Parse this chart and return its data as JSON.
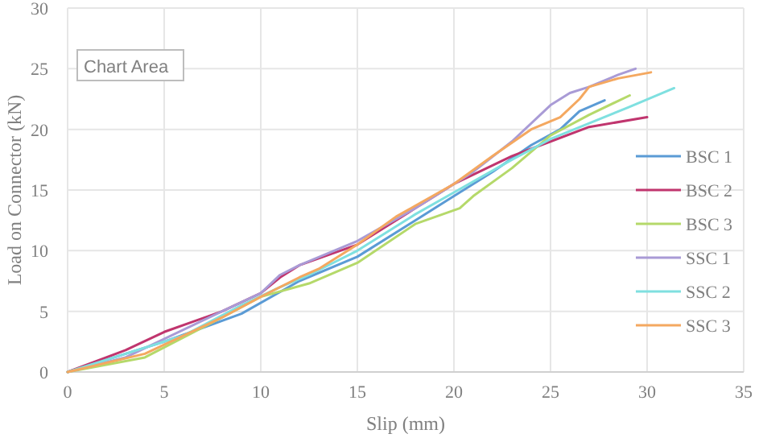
{
  "chart_data": {
    "type": "line",
    "xlabel": "Slip (mm)",
    "ylabel": "Load on Connector (kN)",
    "xlim": [
      0,
      35
    ],
    "xticks": [
      0,
      5,
      10,
      15,
      20,
      25,
      30,
      35
    ],
    "ylim": [
      0,
      30
    ],
    "yticks": [
      0,
      5,
      10,
      15,
      20,
      25,
      30
    ],
    "grid": true,
    "legend": "right",
    "marker": "none",
    "line_style": "solid",
    "annotations": [
      "Chart Area"
    ],
    "series": [
      {
        "name": "BSC 1",
        "color": "#5b9bd5",
        "x": [
          0,
          3,
          5,
          9,
          12,
          15,
          18,
          20,
          22,
          24,
          25.5,
          26.5,
          27.8
        ],
        "values": [
          0,
          1.5,
          2.5,
          4.8,
          7.5,
          9.5,
          12.5,
          14.5,
          16.5,
          18.7,
          20,
          21.5,
          22.4
        ]
      },
      {
        "name": "BSC 2",
        "color": "#c0356e",
        "x": [
          0,
          3,
          5,
          8,
          10,
          11,
          12,
          15,
          18,
          20,
          23,
          25,
          27,
          30
        ],
        "values": [
          0,
          1.8,
          3.3,
          5,
          6.5,
          7.8,
          8.8,
          10.5,
          13.5,
          15.5,
          17.8,
          19,
          20.2,
          21
        ]
      },
      {
        "name": "BSC 3",
        "color": "#b5d96a",
        "x": [
          0,
          4,
          8,
          10,
          12.5,
          15,
          18,
          20.3,
          21,
          23,
          25,
          27,
          29.1
        ],
        "values": [
          0,
          1.2,
          4.5,
          6.2,
          7.3,
          9,
          12.2,
          13.5,
          14.5,
          16.8,
          19.5,
          21.2,
          22.8
        ]
      },
      {
        "name": "SSC 1",
        "color": "#a99bd6",
        "x": [
          0,
          3,
          8,
          10,
          11,
          12,
          15,
          18,
          21,
          23,
          25,
          26,
          27,
          28.5,
          29.4
        ],
        "values": [
          0,
          1.2,
          5,
          6.5,
          8,
          8.8,
          10.8,
          13.5,
          16.5,
          19,
          22,
          23,
          23.5,
          24.5,
          25
        ]
      },
      {
        "name": "SSC 2",
        "color": "#7fe0e0",
        "x": [
          0,
          3,
          6,
          9,
          11,
          12.5,
          15,
          18,
          20,
          23,
          25,
          27,
          29,
          31.4
        ],
        "values": [
          0,
          1.5,
          3,
          5.5,
          7,
          8,
          10,
          13,
          14.8,
          17.5,
          19.2,
          20.5,
          21.8,
          23.4
        ]
      },
      {
        "name": "SSC 3",
        "color": "#f4a860",
        "x": [
          0,
          4,
          8,
          10,
          12,
          13,
          15,
          17,
          20,
          22,
          24,
          25.5,
          26.5,
          27,
          28.5,
          30.2
        ],
        "values": [
          0,
          1.5,
          4.5,
          6.2,
          7.8,
          8.5,
          10.5,
          12.8,
          15.5,
          17.8,
          20,
          21,
          22.5,
          23.5,
          24.2,
          24.7
        ]
      }
    ]
  }
}
